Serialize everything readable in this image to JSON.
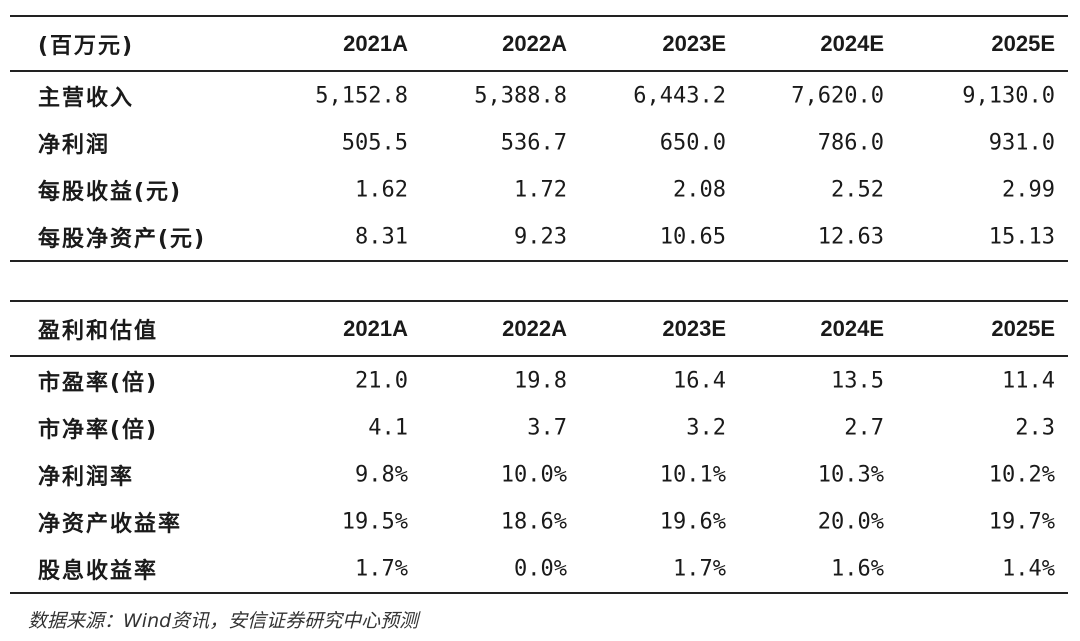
{
  "table1": {
    "header": [
      "(百万元)",
      "2021A",
      "2022A",
      "2023E",
      "2024E",
      "2025E"
    ],
    "rows": [
      [
        "主营收入",
        "5,152.8",
        "5,388.8",
        "6,443.2",
        "7,620.0",
        "9,130.0"
      ],
      [
        "净利润",
        "505.5",
        "536.7",
        "650.0",
        "786.0",
        "931.0"
      ],
      [
        "每股收益(元)",
        "1.62",
        "1.72",
        "2.08",
        "2.52",
        "2.99"
      ],
      [
        "每股净资产(元)",
        "8.31",
        "9.23",
        "10.65",
        "12.63",
        "15.13"
      ]
    ]
  },
  "table2": {
    "header": [
      "盈利和估值",
      "2021A",
      "2022A",
      "2023E",
      "2024E",
      "2025E"
    ],
    "rows": [
      [
        "市盈率(倍)",
        "21.0",
        "19.8",
        "16.4",
        "13.5",
        "11.4"
      ],
      [
        "市净率(倍)",
        "4.1",
        "3.7",
        "3.2",
        "2.7",
        "2.3"
      ],
      [
        "净利润率",
        "9.8%",
        "10.0%",
        "10.1%",
        "10.3%",
        "10.2%"
      ],
      [
        "净资产收益率",
        "19.5%",
        "18.6%",
        "19.6%",
        "20.0%",
        "19.7%"
      ],
      [
        "股息收益率",
        "1.7%",
        "0.0%",
        "1.7%",
        "1.6%",
        "1.4%"
      ]
    ]
  },
  "source_note": "数据来源：Wind资讯，安信证券研究中心预测"
}
